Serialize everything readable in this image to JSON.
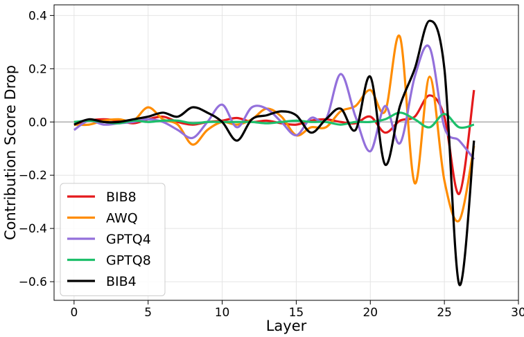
{
  "chart_data": {
    "type": "line",
    "title": "",
    "xlabel": "Layer",
    "ylabel": "Contribution Score Drop",
    "xlim": [
      -1.35,
      30
    ],
    "ylim": [
      -0.67,
      0.44
    ],
    "xticks": [
      0,
      5,
      10,
      15,
      20,
      25,
      30
    ],
    "yticks": [
      -0.6,
      -0.4,
      -0.2,
      0.0,
      0.2,
      0.4
    ],
    "xtick_labels": [
      "0",
      "5",
      "10",
      "15",
      "20",
      "25",
      "30"
    ],
    "ytick_labels": [
      "−0.6",
      "−0.4",
      "−0.2",
      "0.0",
      "0.2",
      "0.4"
    ],
    "grid": true,
    "zero_line": true,
    "legend_position": "lower-left",
    "series": [
      {
        "name": "BIB8",
        "color": "#e41a1c",
        "x": [
          0,
          1,
          2,
          3,
          4,
          5,
          6,
          7,
          8,
          9,
          10,
          11,
          12,
          13,
          14,
          15,
          16,
          17,
          18,
          19,
          20,
          21,
          22,
          23,
          24,
          25,
          26,
          27
        ],
        "y": [
          -0.01,
          0.005,
          0.01,
          0.005,
          -0.005,
          0.01,
          0.02,
          0.0,
          -0.01,
          0.0,
          0.005,
          0.015,
          0.0,
          0.005,
          -0.005,
          -0.01,
          0.005,
          0.01,
          0.0,
          -0.005,
          0.02,
          -0.04,
          0.005,
          0.02,
          0.1,
          0.02,
          -0.27,
          0.12
        ]
      },
      {
        "name": "AWQ",
        "color": "#ff8c00",
        "x": [
          0,
          1,
          2,
          3,
          4,
          5,
          6,
          7,
          8,
          9,
          10,
          11,
          12,
          13,
          14,
          15,
          16,
          17,
          18,
          19,
          20,
          21,
          22,
          23,
          24,
          25,
          26,
          27
        ],
        "y": [
          -0.01,
          -0.01,
          0.005,
          0.01,
          0.005,
          0.055,
          0.01,
          -0.01,
          -0.085,
          -0.03,
          0.0,
          -0.01,
          0.01,
          0.05,
          0.02,
          -0.05,
          -0.02,
          -0.02,
          0.04,
          0.06,
          0.12,
          0.04,
          0.32,
          -0.23,
          0.17,
          -0.22,
          -0.37,
          -0.09
        ]
      },
      {
        "name": "GPTQ4",
        "color": "#9370db",
        "x": [
          0,
          1,
          2,
          3,
          4,
          5,
          6,
          7,
          8,
          9,
          10,
          11,
          12,
          13,
          14,
          15,
          16,
          17,
          18,
          19,
          20,
          21,
          22,
          23,
          24,
          25,
          26,
          27
        ],
        "y": [
          -0.03,
          0.005,
          -0.01,
          -0.005,
          0.0,
          0.01,
          0.0,
          -0.03,
          -0.06,
          0.0,
          0.065,
          -0.02,
          0.055,
          0.05,
          0.0,
          -0.05,
          0.015,
          0.01,
          0.18,
          0.02,
          -0.11,
          0.06,
          -0.08,
          0.17,
          0.28,
          -0.02,
          -0.07,
          -0.14
        ]
      },
      {
        "name": "GPTQ8",
        "color": "#1dbf6b",
        "x": [
          0,
          1,
          2,
          3,
          4,
          5,
          6,
          7,
          8,
          9,
          10,
          11,
          12,
          13,
          14,
          15,
          16,
          17,
          18,
          19,
          20,
          21,
          22,
          23,
          24,
          25,
          26,
          27
        ],
        "y": [
          0.0,
          0.005,
          0.0,
          -0.005,
          0.005,
          0.0,
          0.005,
          0.005,
          -0.005,
          0.0,
          0.0,
          0.0,
          0.0,
          -0.005,
          0.0,
          0.005,
          0.0,
          0.0,
          -0.01,
          0.0,
          0.0,
          0.01,
          0.035,
          0.01,
          -0.02,
          0.03,
          -0.02,
          -0.01
        ]
      },
      {
        "name": "BIB4",
        "color": "#000000",
        "x": [
          0,
          1,
          2,
          3,
          4,
          5,
          6,
          7,
          8,
          9,
          10,
          11,
          12,
          13,
          14,
          15,
          16,
          17,
          18,
          19,
          20,
          21,
          22,
          23,
          24,
          25,
          26,
          27
        ],
        "y": [
          -0.01,
          0.01,
          0.0,
          0.0,
          0.01,
          0.02,
          0.035,
          0.02,
          0.055,
          0.035,
          0.0,
          -0.07,
          0.01,
          0.025,
          0.04,
          0.025,
          -0.04,
          0.01,
          0.05,
          -0.03,
          0.17,
          -0.16,
          0.06,
          0.2,
          0.38,
          0.2,
          -0.61,
          -0.07
        ]
      }
    ]
  }
}
